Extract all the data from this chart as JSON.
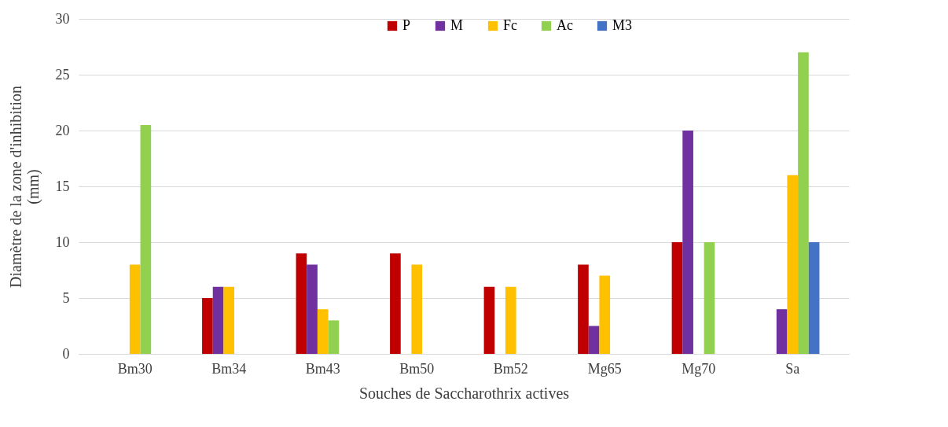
{
  "chart_data": {
    "type": "bar",
    "xlabel": "Souches de Saccharothrix actives",
    "ylabel": "Diamètre de la zone d'inhibition (mm)",
    "categories": [
      "Bm30",
      "Bm34",
      "Bm43",
      "Bm50",
      "Bm52",
      "Mg65",
      "Mg70",
      "Sa"
    ],
    "series": [
      {
        "name": "P",
        "color": "#c00000",
        "values": [
          0,
          5,
          9,
          9,
          6,
          8,
          10,
          0
        ]
      },
      {
        "name": "M",
        "color": "#7030a0",
        "values": [
          0,
          6,
          8,
          0,
          0,
          2.5,
          20,
          4
        ]
      },
      {
        "name": "Fc",
        "color": "#ffc000",
        "values": [
          8,
          6,
          4,
          8,
          6,
          7,
          0,
          16
        ]
      },
      {
        "name": "Ac",
        "color": "#92d050",
        "values": [
          20.5,
          0,
          3,
          0,
          0,
          0,
          10,
          27
        ]
      },
      {
        "name": "M3",
        "color": "#4472c4",
        "values": [
          0,
          0,
          0,
          0,
          0,
          0,
          0,
          10
        ]
      }
    ],
    "ylim": [
      0,
      30
    ],
    "yticks": [
      0,
      5,
      10,
      15,
      20,
      25,
      30
    ],
    "grid": "y",
    "legend": "top"
  }
}
